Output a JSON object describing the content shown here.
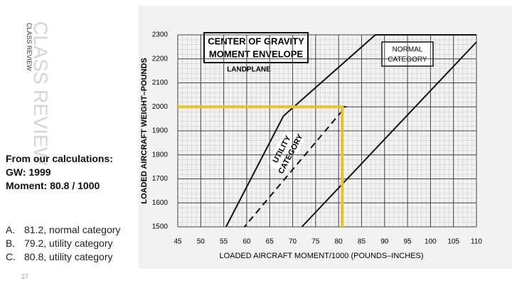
{
  "slide": {
    "watermark": "CLASS REVIEW",
    "side_label": "CLASS REVIEW",
    "calc_heading": "From our calculations:",
    "gw": "GW: 1999",
    "moment": "Moment: 80.8 / 1000",
    "options": [
      {
        "letter": "A.",
        "text": "81.2, normal category"
      },
      {
        "letter": "B.",
        "text": "79.2, utility category"
      },
      {
        "letter": "C.",
        "text": "80.8, utility category"
      }
    ],
    "page_number": "27"
  },
  "chart_data": {
    "type": "line",
    "title": [
      "CENTER OF GRAVITY",
      "MOMENT ENVELOPE"
    ],
    "subtitle": "LANDPLANE",
    "annotations": [
      [
        "NORMAL",
        "CATEGORY"
      ],
      [
        "UTILITY",
        "CATEGORY"
      ]
    ],
    "xlabel": "LOADED AIRCRAFT MOMENT/1000 (POUNDS–INCHES)",
    "ylabel": "LOADED AIRCRAFT WEIGHT–POUNDS",
    "xlim": [
      45,
      110
    ],
    "ylim": [
      1500,
      2300
    ],
    "xticks": [
      45,
      50,
      55,
      60,
      65,
      70,
      75,
      80,
      85,
      90,
      95,
      100,
      105,
      110
    ],
    "yticks": [
      1500,
      1600,
      1700,
      1800,
      1900,
      2000,
      2100,
      2200,
      2300
    ],
    "grid": true,
    "series": [
      {
        "color": "#111111",
        "dashed": false,
        "x": [
          55.5,
          68,
          88,
          110
        ],
        "values": [
          1500,
          1962,
          2300,
          2300
        ]
      },
      {
        "color": "#111111",
        "dashed": false,
        "x": [
          72,
          110
        ],
        "values": [
          1500,
          2270
        ]
      },
      {
        "color": "#111111",
        "dashed": true,
        "x": [
          68.6,
          81.5,
          59.5
        ],
        "values": [
          2000,
          2000,
          1500
        ]
      },
      {
        "color": "#e8c22e",
        "dashed": false,
        "x": [
          45,
          80.8,
          80.8
        ],
        "values": [
          2000,
          2000,
          1500
        ]
      }
    ]
  }
}
